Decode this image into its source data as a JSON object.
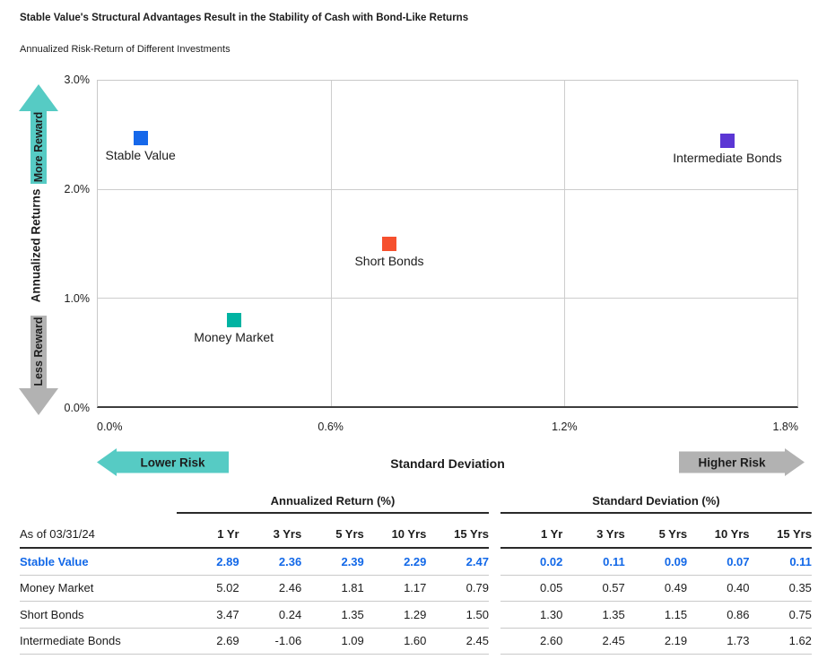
{
  "title": "Stable Value's Structural Advantages Result in the Stability of Cash with Bond-Like Returns",
  "subtitle": "Annualized Risk-Return of Different Investments",
  "colors": {
    "accent_blue": "#1268e8",
    "stable_value": "#1668ea",
    "money_market": "#00b3a2",
    "short_bonds": "#f6502e",
    "intermediate_bonds": "#5b36d4",
    "teal_arrow": "#56cbc4",
    "gray_arrow": "#b2b2b2"
  },
  "chart_data": {
    "type": "scatter",
    "title": "Annualized Risk-Return of Different Investments",
    "xlabel": "Standard Deviation",
    "ylabel": "Annualized Returns",
    "xlim": [
      0,
      1.8
    ],
    "ylim": [
      0,
      3.0
    ],
    "grid": true,
    "x_tick_values": [
      0,
      0.6,
      1.2,
      1.8
    ],
    "x_tick_labels": [
      "0.0%",
      "0.6%",
      "1.2%",
      "1.8%"
    ],
    "y_tick_values": [
      0,
      1.0,
      2.0,
      3.0
    ],
    "y_tick_labels": [
      "0.0%",
      "1.0%",
      "2.0%",
      "3.0%"
    ],
    "points": [
      {
        "label": "Stable Value",
        "x": 0.11,
        "y": 2.47,
        "color": "#1668ea"
      },
      {
        "label": "Money Market",
        "x": 0.35,
        "y": 0.79,
        "color": "#00b3a2"
      },
      {
        "label": "Short Bonds",
        "x": 0.75,
        "y": 1.5,
        "color": "#f6502e"
      },
      {
        "label": "Intermediate Bonds",
        "x": 1.62,
        "y": 2.45,
        "color": "#5b36d4"
      }
    ],
    "annotations": {
      "more_reward": "More Reward",
      "less_reward": "Less Reward",
      "lower_risk": "Lower Risk",
      "higher_risk": "Higher Risk"
    }
  },
  "table": {
    "as_of_label": "As of 03/31/24",
    "group_headers": [
      "Annualized Return (%)",
      "Standard Deviation (%)"
    ],
    "col_headers": [
      "1 Yr",
      "3 Yrs",
      "5 Yrs",
      "10 Yrs",
      "15 Yrs"
    ],
    "rows": [
      {
        "name": "Stable Value",
        "highlight": true,
        "annualized_return": [
          "2.89",
          "2.36",
          "2.39",
          "2.29",
          "2.47"
        ],
        "standard_deviation": [
          "0.02",
          "0.11",
          "0.09",
          "0.07",
          "0.11"
        ]
      },
      {
        "name": "Money Market",
        "highlight": false,
        "annualized_return": [
          "5.02",
          "2.46",
          "1.81",
          "1.17",
          "0.79"
        ],
        "standard_deviation": [
          "0.05",
          "0.57",
          "0.49",
          "0.40",
          "0.35"
        ]
      },
      {
        "name": "Short Bonds",
        "highlight": false,
        "annualized_return": [
          "3.47",
          "0.24",
          "1.35",
          "1.29",
          "1.50"
        ],
        "standard_deviation": [
          "1.30",
          "1.35",
          "1.15",
          "0.86",
          "0.75"
        ]
      },
      {
        "name": "Intermediate Bonds",
        "highlight": false,
        "annualized_return": [
          "2.69",
          "-1.06",
          "1.09",
          "1.60",
          "2.45"
        ],
        "standard_deviation": [
          "2.60",
          "2.45",
          "2.19",
          "1.73",
          "1.62"
        ]
      }
    ]
  }
}
